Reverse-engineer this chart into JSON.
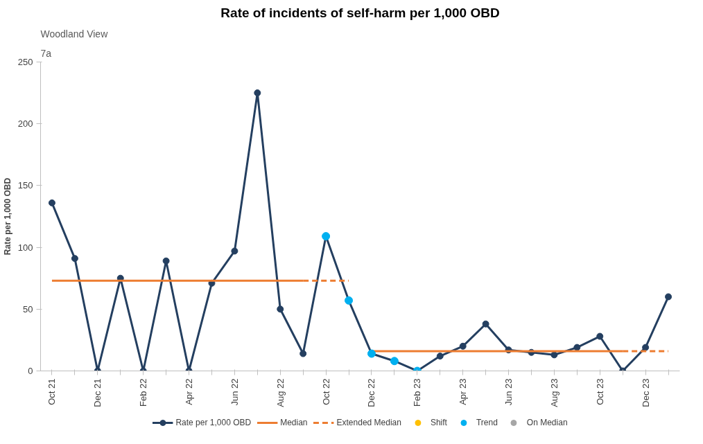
{
  "chart_data": {
    "type": "line",
    "title": "Rate of incidents of self-harm per 1,000 OBD",
    "ylabel": "Rate per 1,000 OBD",
    "annotations": [
      "Woodland View",
      "7a"
    ],
    "categories": [
      "Oct 21",
      null,
      "Dec 21",
      null,
      "Feb 22",
      null,
      "Apr 22",
      null,
      "Jun 22",
      null,
      "Aug 22",
      null,
      "Oct 22",
      null,
      "Dec 22",
      null,
      "Feb 23",
      null,
      "Apr 23",
      null,
      "Jun 23",
      null,
      "Aug 23",
      null,
      "Oct 23",
      null,
      "Dec 23",
      null
    ],
    "ylim": [
      0,
      250
    ],
    "yticks": [
      0,
      50,
      100,
      150,
      200,
      250
    ],
    "grid": false,
    "legend": "bottom",
    "series": [
      {
        "name": "Rate per 1,000 OBD",
        "color": "#243f60",
        "marker": "circle",
        "line_style": "solid",
        "values": [
          136,
          91,
          0,
          75,
          0,
          89,
          0,
          71,
          97,
          225,
          50,
          14,
          109,
          57,
          14,
          8,
          0,
          12,
          20,
          38,
          17,
          15,
          13,
          19,
          28,
          0,
          19,
          60
        ]
      },
      {
        "name": "Median",
        "type": "line",
        "color": "#ed7d31",
        "marker": "none",
        "line_style": "solid",
        "values": [
          73,
          73,
          73,
          73,
          73,
          73,
          73,
          73,
          73,
          73,
          73,
          73,
          null,
          null,
          16,
          16,
          16,
          16,
          16,
          16,
          16,
          16,
          16,
          16,
          16,
          16,
          null,
          null
        ]
      },
      {
        "name": "Extended Median",
        "type": "line",
        "color": "#ed7d31",
        "marker": "none",
        "line_style": "dashed",
        "values": [
          null,
          null,
          null,
          null,
          null,
          null,
          null,
          null,
          null,
          null,
          null,
          73,
          73,
          73,
          null,
          null,
          null,
          null,
          null,
          null,
          null,
          null,
          null,
          null,
          null,
          16,
          16,
          16
        ]
      },
      {
        "name": "Shift",
        "type": "scatter",
        "color": "#ffc000",
        "marker": "circle",
        "values": [
          null,
          null,
          null,
          null,
          null,
          null,
          null,
          null,
          null,
          null,
          null,
          null,
          null,
          null,
          null,
          null,
          null,
          null,
          null,
          null,
          null,
          null,
          null,
          null,
          null,
          null,
          null,
          null
        ]
      },
      {
        "name": "Trend",
        "type": "scatter",
        "color": "#00b0f0",
        "marker": "circle",
        "values": [
          null,
          null,
          null,
          null,
          null,
          null,
          null,
          null,
          null,
          null,
          null,
          null,
          109,
          57,
          14,
          8,
          0,
          null,
          null,
          null,
          null,
          null,
          null,
          null,
          null,
          null,
          null,
          null
        ]
      },
      {
        "name": "On Median",
        "type": "scatter",
        "color": "#a6a6a6",
        "marker": "circle",
        "values": [
          null,
          null,
          null,
          null,
          null,
          null,
          null,
          null,
          null,
          null,
          null,
          null,
          null,
          null,
          null,
          null,
          null,
          null,
          null,
          null,
          null,
          null,
          null,
          null,
          null,
          null,
          null,
          null
        ]
      }
    ]
  }
}
